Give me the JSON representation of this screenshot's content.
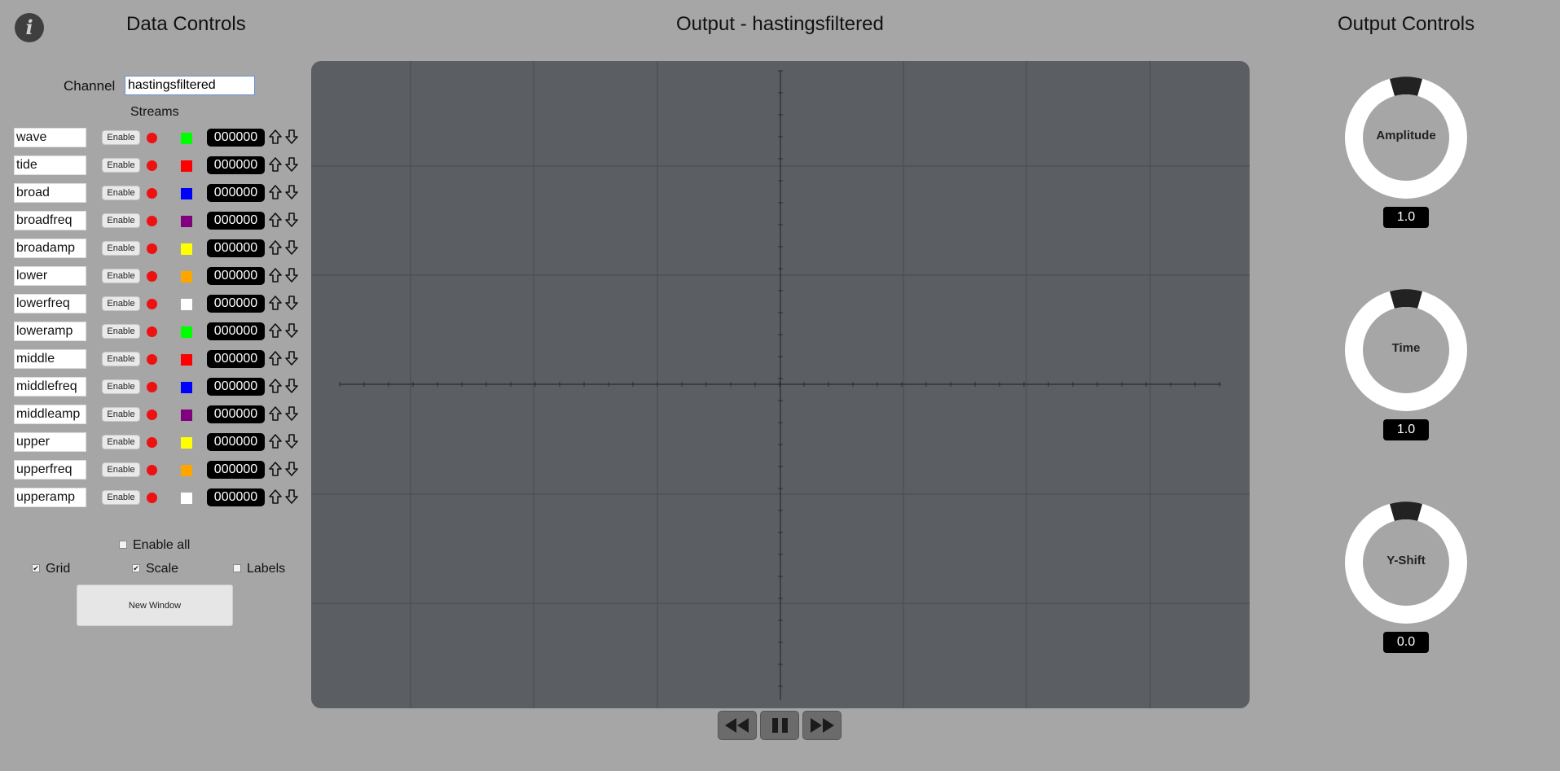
{
  "header": {
    "info_icon": "info-icon",
    "data_controls_title": "Data Controls",
    "output_title": "Output - hastingsfiltered",
    "output_controls_title": "Output Controls"
  },
  "channel": {
    "label": "Channel",
    "value": "hastingsfiltered"
  },
  "streams_label": "Streams",
  "streams": [
    {
      "name": "wave",
      "enable_label": "Enable",
      "color": "#00ff00",
      "counter": "000000"
    },
    {
      "name": "tide",
      "enable_label": "Enable",
      "color": "#ff0000",
      "counter": "000000"
    },
    {
      "name": "broad",
      "enable_label": "Enable",
      "color": "#0000ff",
      "counter": "000000"
    },
    {
      "name": "broadfreq",
      "enable_label": "Enable",
      "color": "#800080",
      "counter": "000000"
    },
    {
      "name": "broadamp",
      "enable_label": "Enable",
      "color": "#ffff00",
      "counter": "000000"
    },
    {
      "name": "lower",
      "enable_label": "Enable",
      "color": "#ffa500",
      "counter": "000000"
    },
    {
      "name": "lowerfreq",
      "enable_label": "Enable",
      "color": "#ffffff",
      "counter": "000000"
    },
    {
      "name": "loweramp",
      "enable_label": "Enable",
      "color": "#00ff00",
      "counter": "000000"
    },
    {
      "name": "middle",
      "enable_label": "Enable",
      "color": "#ff0000",
      "counter": "000000"
    },
    {
      "name": "middlefreq",
      "enable_label": "Enable",
      "color": "#0000ff",
      "counter": "000000"
    },
    {
      "name": "middleamp",
      "enable_label": "Enable",
      "color": "#800080",
      "counter": "000000"
    },
    {
      "name": "upper",
      "enable_label": "Enable",
      "color": "#ffff00",
      "counter": "000000"
    },
    {
      "name": "upperfreq",
      "enable_label": "Enable",
      "color": "#ffa500",
      "counter": "000000"
    },
    {
      "name": "upperamp",
      "enable_label": "Enable",
      "color": "#ffffff",
      "counter": "000000"
    }
  ],
  "status_dot_color": "#ee1111",
  "options": {
    "enable_all": {
      "label": "Enable all",
      "checked": false
    },
    "grid": {
      "label": "Grid",
      "checked": true
    },
    "scale": {
      "label": "Scale",
      "checked": true
    },
    "labels": {
      "label": "Labels",
      "checked": false
    }
  },
  "new_window_label": "New Window",
  "playback": {
    "rewind_icon": "rewind-icon",
    "pause_icon": "pause-icon",
    "forward_icon": "fast-forward-icon"
  },
  "knobs": [
    {
      "label": "Amplitude",
      "value": "1.0"
    },
    {
      "label": "Time",
      "value": "1.0"
    },
    {
      "label": "Y-Shift",
      "value": "0.0"
    }
  ]
}
